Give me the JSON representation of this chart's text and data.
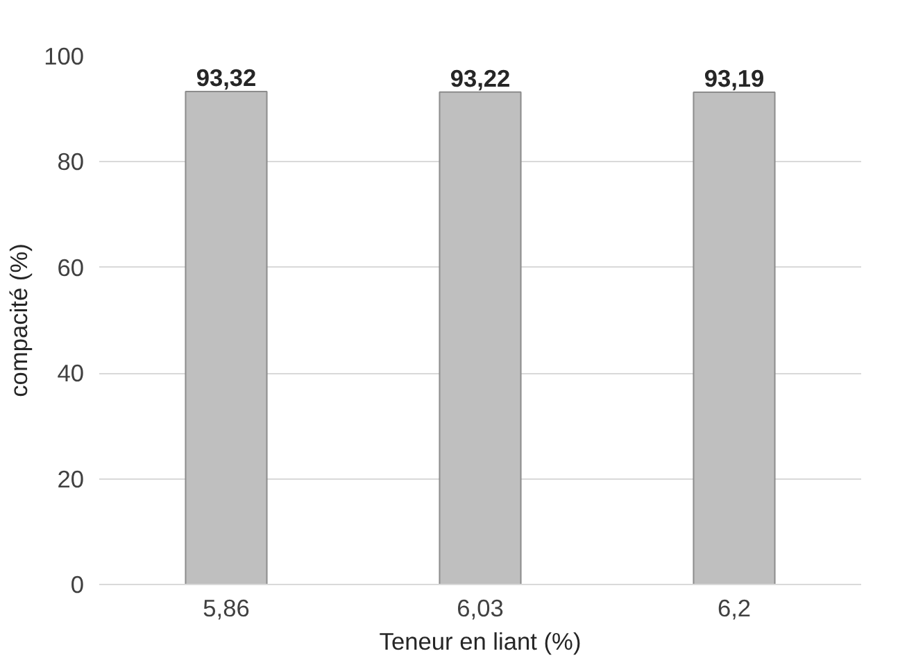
{
  "chart_data": {
    "type": "bar",
    "categories": [
      "5,86",
      "6,03",
      "6,2"
    ],
    "values": [
      93.32,
      93.22,
      93.19
    ],
    "value_labels": [
      "93,32",
      "93,22",
      "93,19"
    ],
    "color": "#bfbfbf",
    "xlabel": "Teneur en liant (%)",
    "ylabel": "compacité (%)",
    "ylim": [
      0,
      100
    ],
    "yticks": [
      0,
      20,
      40,
      60,
      80,
      100
    ],
    "grid": "y"
  }
}
